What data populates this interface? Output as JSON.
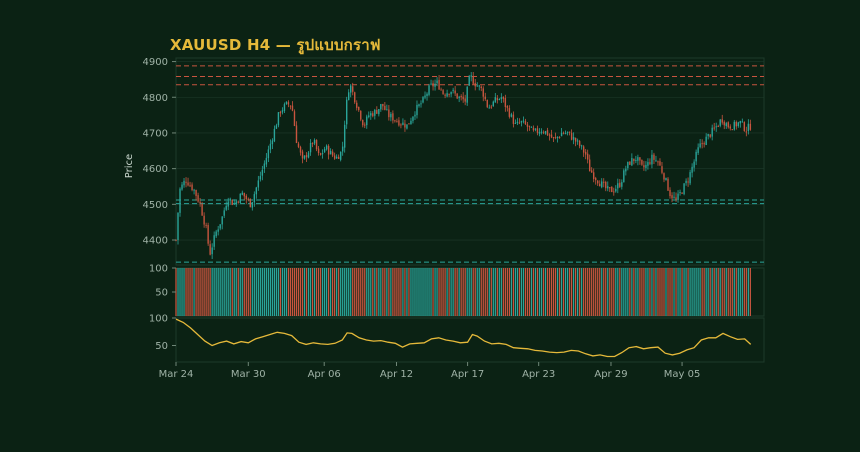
{
  "title": "XAUUSD H4 — รูปแบบกราฟ",
  "colors": {
    "background": "#0b2214",
    "up": "#2aa59a",
    "down": "#c8553f",
    "line": "#e5b93a",
    "resistance": "#c8553f",
    "support": "#2aa59a",
    "grid": "#1e3a2a",
    "title": "#e5b93a"
  },
  "chart_data": [
    {
      "type": "candlestick",
      "ylabel": "Price",
      "ylim": [
        4330,
        4910
      ],
      "yticks": [
        4400,
        4500,
        4600,
        4700,
        4800,
        4900
      ],
      "xlim_days": [
        0,
        48.8
      ],
      "xtick_labels": [
        "Mar 24",
        "Mar 30",
        "Apr 06",
        "Apr 12",
        "Apr 17",
        "Apr 23",
        "Apr 29",
        "May 05"
      ],
      "xtick_days": [
        0,
        6,
        12.3,
        18.3,
        24.2,
        30.1,
        36.1,
        42
      ],
      "close_path": [
        [
          0,
          4400
        ],
        [
          0.3,
          4540
        ],
        [
          0.8,
          4570
        ],
        [
          1.5,
          4540
        ],
        [
          2,
          4500
        ],
        [
          2.5,
          4430
        ],
        [
          2.8,
          4360
        ],
        [
          3.3,
          4420
        ],
        [
          3.8,
          4460
        ],
        [
          4.3,
          4520
        ],
        [
          4.8,
          4500
        ],
        [
          5.5,
          4530
        ],
        [
          6.2,
          4500
        ],
        [
          6.8,
          4560
        ],
        [
          7.4,
          4620
        ],
        [
          8.1,
          4700
        ],
        [
          8.6,
          4760
        ],
        [
          9.2,
          4780
        ],
        [
          9.6,
          4780
        ],
        [
          10.0,
          4680
        ],
        [
          10.5,
          4620
        ],
        [
          11.0,
          4650
        ],
        [
          11.4,
          4680
        ],
        [
          11.9,
          4630
        ],
        [
          12.4,
          4660
        ],
        [
          12.9,
          4640
        ],
        [
          13.3,
          4630
        ],
        [
          13.8,
          4650
        ],
        [
          14.1,
          4770
        ],
        [
          14.4,
          4840
        ],
        [
          14.8,
          4800
        ],
        [
          15.2,
          4760
        ],
        [
          15.6,
          4720
        ],
        [
          16.0,
          4750
        ],
        [
          16.6,
          4760
        ],
        [
          17.1,
          4780
        ],
        [
          17.6,
          4750
        ],
        [
          18.1,
          4740
        ],
        [
          18.6,
          4730
        ],
        [
          19.2,
          4720
        ],
        [
          19.8,
          4760
        ],
        [
          20.5,
          4790
        ],
        [
          21.1,
          4830
        ],
        [
          21.7,
          4840
        ],
        [
          22.2,
          4810
        ],
        [
          22.8,
          4820
        ],
        [
          23.4,
          4800
        ],
        [
          24.0,
          4790
        ],
        [
          24.4,
          4860
        ],
        [
          24.8,
          4840
        ],
        [
          25.4,
          4820
        ],
        [
          25.9,
          4770
        ],
        [
          26.5,
          4790
        ],
        [
          27.0,
          4800
        ],
        [
          27.6,
          4760
        ],
        [
          28.2,
          4720
        ],
        [
          28.6,
          4730
        ],
        [
          29.1,
          4720
        ],
        [
          29.7,
          4700
        ],
        [
          30.3,
          4710
        ],
        [
          30.8,
          4700
        ],
        [
          31.4,
          4680
        ],
        [
          32.0,
          4700
        ],
        [
          32.5,
          4700
        ],
        [
          33.1,
          4680
        ],
        [
          33.6,
          4660
        ],
        [
          34.0,
          4640
        ],
        [
          34.3,
          4600
        ],
        [
          34.7,
          4580
        ],
        [
          35.2,
          4560
        ],
        [
          35.8,
          4540
        ],
        [
          36.3,
          4540
        ],
        [
          36.9,
          4560
        ],
        [
          37.3,
          4600
        ],
        [
          37.7,
          4620
        ],
        [
          38.2,
          4630
        ],
        [
          38.7,
          4600
        ],
        [
          39.1,
          4610
        ],
        [
          39.5,
          4630
        ],
        [
          40.0,
          4620
        ],
        [
          40.5,
          4580
        ],
        [
          41.0,
          4530
        ],
        [
          41.5,
          4510
        ],
        [
          42.0,
          4540
        ],
        [
          42.5,
          4570
        ],
        [
          43.0,
          4620
        ],
        [
          43.4,
          4660
        ],
        [
          43.9,
          4680
        ],
        [
          44.4,
          4700
        ],
        [
          44.9,
          4720
        ],
        [
          45.3,
          4740
        ],
        [
          45.8,
          4720
        ],
        [
          46.3,
          4720
        ],
        [
          46.8,
          4730
        ],
        [
          47.3,
          4710
        ],
        [
          47.7,
          4720
        ]
      ],
      "horizontal_levels": {
        "resistance": [
          4888,
          4858,
          4835
        ],
        "support": [
          4512,
          4502,
          4338
        ]
      }
    },
    {
      "type": "bar",
      "yticks": [
        50,
        100
      ],
      "ylim": [
        0,
        100
      ],
      "note_values": "each bar height 100, colored by candle direction"
    },
    {
      "type": "line",
      "yticks": [
        50,
        100
      ],
      "ylim": [
        20,
        100
      ],
      "points": [
        [
          0,
          98
        ],
        [
          0.6,
          92
        ],
        [
          1.2,
          82
        ],
        [
          1.8,
          70
        ],
        [
          2.4,
          58
        ],
        [
          3.0,
          50
        ],
        [
          3.6,
          55
        ],
        [
          4.2,
          58
        ],
        [
          4.8,
          53
        ],
        [
          5.4,
          57
        ],
        [
          6.0,
          55
        ],
        [
          6.6,
          62
        ],
        [
          7.2,
          66
        ],
        [
          7.8,
          70
        ],
        [
          8.4,
          74
        ],
        [
          9.0,
          72
        ],
        [
          9.6,
          68
        ],
        [
          10.2,
          56
        ],
        [
          10.8,
          52
        ],
        [
          11.4,
          55
        ],
        [
          12.0,
          53
        ],
        [
          12.6,
          52
        ],
        [
          13.2,
          54
        ],
        [
          13.8,
          60
        ],
        [
          14.2,
          73
        ],
        [
          14.6,
          72
        ],
        [
          15.2,
          64
        ],
        [
          15.8,
          60
        ],
        [
          16.4,
          58
        ],
        [
          17.0,
          59
        ],
        [
          17.6,
          56
        ],
        [
          18.2,
          54
        ],
        [
          18.8,
          47
        ],
        [
          19.4,
          53
        ],
        [
          20.0,
          54
        ],
        [
          20.6,
          55
        ],
        [
          21.2,
          62
        ],
        [
          21.8,
          64
        ],
        [
          22.4,
          60
        ],
        [
          23.0,
          58
        ],
        [
          23.6,
          55
        ],
        [
          24.2,
          56
        ],
        [
          24.6,
          70
        ],
        [
          25.0,
          67
        ],
        [
          25.6,
          58
        ],
        [
          26.2,
          53
        ],
        [
          26.8,
          54
        ],
        [
          27.4,
          52
        ],
        [
          28.0,
          46
        ],
        [
          28.6,
          45
        ],
        [
          29.2,
          44
        ],
        [
          29.8,
          41
        ],
        [
          30.4,
          40
        ],
        [
          31.0,
          38
        ],
        [
          31.6,
          37
        ],
        [
          32.2,
          38
        ],
        [
          32.8,
          41
        ],
        [
          33.4,
          40
        ],
        [
          34.0,
          35
        ],
        [
          34.6,
          31
        ],
        [
          35.2,
          33
        ],
        [
          35.8,
          30
        ],
        [
          36.4,
          30
        ],
        [
          37.0,
          37
        ],
        [
          37.6,
          46
        ],
        [
          38.2,
          48
        ],
        [
          38.8,
          44
        ],
        [
          39.4,
          46
        ],
        [
          40.0,
          47
        ],
        [
          40.6,
          36
        ],
        [
          41.2,
          33
        ],
        [
          41.8,
          36
        ],
        [
          42.4,
          42
        ],
        [
          43.0,
          46
        ],
        [
          43.6,
          60
        ],
        [
          44.2,
          64
        ],
        [
          44.8,
          64
        ],
        [
          45.4,
          72
        ],
        [
          46.0,
          66
        ],
        [
          46.6,
          61
        ],
        [
          47.2,
          62
        ],
        [
          47.7,
          52
        ]
      ]
    }
  ]
}
